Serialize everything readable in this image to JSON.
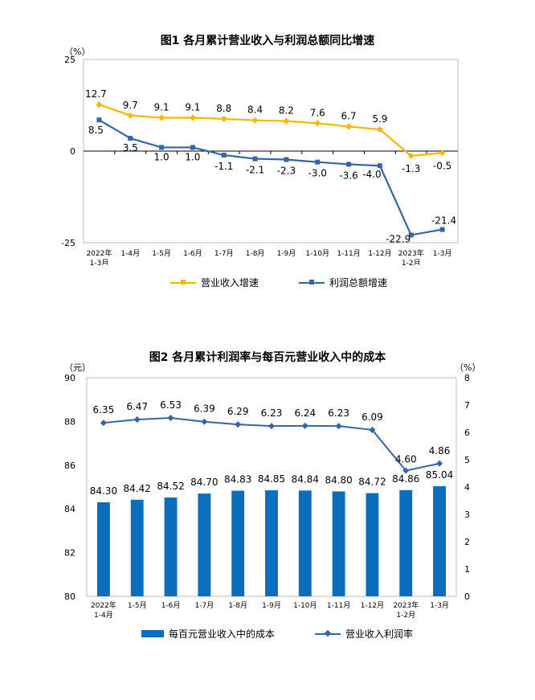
{
  "chart_data": [
    {
      "type": "line",
      "title": "图1 各月累计营业收入与利润总额同比增速",
      "ylabel": "（%）",
      "ylim": [
        -25,
        25
      ],
      "yticks": [
        25,
        0,
        -25
      ],
      "categories": [
        [
          "2022年",
          "1-3月"
        ],
        [
          "1-4月"
        ],
        [
          "1-5月"
        ],
        [
          "1-6月"
        ],
        [
          "1-7月"
        ],
        [
          "1-8月"
        ],
        [
          "1-9月"
        ],
        [
          "1-10月"
        ],
        [
          "1-11月"
        ],
        [
          "1-12月"
        ],
        [
          "2023年",
          "1-2月"
        ],
        [
          "1-3月"
        ]
      ],
      "series": [
        {
          "name": "营业收入增速",
          "color": "#F5B800",
          "values": [
            12.7,
            9.7,
            9.1,
            9.1,
            8.8,
            8.4,
            8.2,
            7.6,
            6.7,
            5.9,
            -1.3,
            -0.5
          ],
          "labels": [
            "12.7",
            "9.7",
            "9.1",
            "9.1",
            "8.8",
            "8.4",
            "8.2",
            "7.6",
            "6.7",
            "5.9",
            "-1.3",
            "-0.5"
          ]
        },
        {
          "name": "利润总额增速",
          "color": "#3465A4",
          "values": [
            8.5,
            3.5,
            1.0,
            1.0,
            -1.1,
            -2.1,
            -2.3,
            -3.0,
            -3.6,
            -4.0,
            -22.9,
            -21.4
          ],
          "labels": [
            "8.5",
            "3.5",
            "1.0",
            "1.0",
            "-1.1",
            "-2.1",
            "-2.3",
            "-3.0",
            "-3.6",
            "-4.0",
            "-22.9",
            "-21.4"
          ]
        }
      ]
    },
    {
      "type": "bar+line",
      "title": "图2 各月累计利润率与每百元营业收入中的成本",
      "ylabel_left": "（元）",
      "ylabel_right": "（%）",
      "ylim_left": [
        80,
        90
      ],
      "yticks_left": [
        90,
        88,
        86,
        84,
        82,
        80
      ],
      "ylim_right": [
        0,
        8
      ],
      "yticks_right": [
        8,
        7,
        6,
        5,
        4,
        3,
        2,
        1,
        0
      ],
      "categories": [
        [
          "2022年",
          "1-4月"
        ],
        [
          "1-5月"
        ],
        [
          "1-6月"
        ],
        [
          "1-7月"
        ],
        [
          "1-8月"
        ],
        [
          "1-9月"
        ],
        [
          "1-10月"
        ],
        [
          "1-11月"
        ],
        [
          "1-12月"
        ],
        [
          "2023年",
          "1-2月"
        ],
        [
          "1-3月"
        ]
      ],
      "series": [
        {
          "name": "每百元营业收入中的成本",
          "color": "#0A6EBD",
          "axis": "left",
          "values": [
            84.3,
            84.42,
            84.52,
            84.7,
            84.83,
            84.85,
            84.84,
            84.8,
            84.72,
            84.86,
            85.04
          ],
          "labels": [
            "84.30",
            "84.42",
            "84.52",
            "84.70",
            "84.83",
            "84.85",
            "84.84",
            "84.80",
            "84.72",
            "84.86",
            "85.04"
          ]
        },
        {
          "name": "营业收入利润率",
          "color": "#3465A4",
          "axis": "right",
          "values": [
            6.35,
            6.47,
            6.53,
            6.39,
            6.29,
            6.23,
            6.24,
            6.23,
            6.09,
            4.6,
            4.86
          ],
          "labels": [
            "6.35",
            "6.47",
            "6.53",
            "6.39",
            "6.29",
            "6.23",
            "6.24",
            "6.23",
            "6.09",
            "4.60",
            "4.86"
          ]
        }
      ]
    }
  ]
}
